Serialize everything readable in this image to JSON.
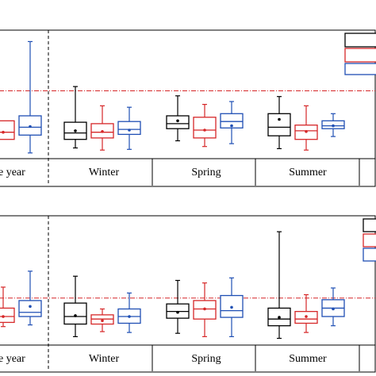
{
  "colors": {
    "black": "#000000",
    "red": "#d62728",
    "blue": "#1f4fb4",
    "threshold": "#d62728"
  },
  "chart_data": [
    {
      "type": "box",
      "panel": "top",
      "groups": [
        "e year",
        "Winter",
        "Spring",
        "Summer"
      ],
      "series": [
        {
          "color": "black",
          "boxes": [
            null,
            {
              "min": 1.0,
              "q1": 2.2,
              "median": 3.1,
              "q3": 4.6,
              "max": 9.6,
              "mean": 3.4
            },
            {
              "min": 2.0,
              "q1": 3.7,
              "median": 4.4,
              "q3": 5.5,
              "max": 8.3,
              "mean": 4.8
            },
            {
              "min": 0.9,
              "q1": 2.7,
              "median": 3.9,
              "q3": 5.8,
              "max": 8.2,
              "mean": 5.0
            }
          ]
        },
        {
          "color": "red",
          "boxes": [
            {
              "min": 2.2,
              "q1": 2.2,
              "median": 3.2,
              "q3": 4.8,
              "max": 4.8,
              "mean": 3.2
            },
            {
              "min": 0.7,
              "q1": 2.4,
              "median": 3.2,
              "q3": 4.4,
              "max": 6.9,
              "mean": 3.3
            },
            {
              "min": 1.2,
              "q1": 2.4,
              "median": 3.5,
              "q3": 5.3,
              "max": 7.1,
              "mean": 3.5
            },
            {
              "min": 0.7,
              "q1": 2.2,
              "median": 3.4,
              "q3": 4.2,
              "max": 6.9,
              "mean": 3.3
            }
          ]
        },
        {
          "color": "blue",
          "boxes": [
            {
              "min": 0.3,
              "q1": 2.8,
              "median": 3.9,
              "q3": 5.5,
              "max": 15.9,
              "mean": 4.0
            },
            {
              "min": 0.8,
              "q1": 2.9,
              "median": 3.6,
              "q3": 4.7,
              "max": 6.7,
              "mean": 3.5
            },
            {
              "min": 1.6,
              "q1": 3.8,
              "median": 4.7,
              "q3": 5.8,
              "max": 7.5,
              "mean": 4.1
            },
            {
              "min": 2.6,
              "q1": 3.7,
              "median": 4.1,
              "q3": 4.8,
              "max": 5.8,
              "mean": 4.1
            }
          ]
        }
      ],
      "threshold": 9.0,
      "ylim": [
        -0.5,
        17.5
      ]
    },
    {
      "type": "box",
      "panel": "bottom",
      "groups": [
        "e year",
        "Winter",
        "Spring",
        "Summer"
      ],
      "series": [
        {
          "color": "black",
          "boxes": [
            null,
            {
              "min": 1.0,
              "q1": 2.5,
              "median": 3.4,
              "q3": 5.0,
              "max": 8.2,
              "mean": 3.5
            },
            {
              "min": 1.4,
              "q1": 3.2,
              "median": 4.0,
              "q3": 4.9,
              "max": 7.7,
              "mean": 3.9
            },
            {
              "min": 0.8,
              "q1": 2.3,
              "median": 3.1,
              "q3": 4.4,
              "max": 13.5,
              "mean": 3.3
            }
          ]
        },
        {
          "color": "red",
          "boxes": [
            {
              "min": 2.2,
              "q1": 2.7,
              "median": 3.4,
              "q3": 4.4,
              "max": 6.9,
              "mean": 3.4
            },
            {
              "min": 1.6,
              "q1": 2.5,
              "median": 3.1,
              "q3": 3.6,
              "max": 4.3,
              "mean": 2.9
            },
            {
              "min": 1.0,
              "q1": 3.1,
              "median": 4.3,
              "q3": 5.3,
              "max": 7.4,
              "mean": 4.3
            },
            {
              "min": 1.5,
              "q1": 2.6,
              "median": 3.1,
              "q3": 4.0,
              "max": 6.0,
              "mean": 3.4
            }
          ]
        },
        {
          "color": "blue",
          "boxes": [
            {
              "min": 2.4,
              "q1": 3.4,
              "median": 3.9,
              "q3": 5.3,
              "max": 8.8,
              "mean": 4.6
            },
            {
              "min": 1.5,
              "q1": 2.6,
              "median": 3.4,
              "q3": 4.3,
              "max": 6.2,
              "mean": 3.4
            },
            {
              "min": 1.0,
              "q1": 3.3,
              "median": 4.1,
              "q3": 5.9,
              "max": 8.0,
              "mean": 4.5
            },
            {
              "min": 2.3,
              "q1": 3.4,
              "median": 4.4,
              "q3": 5.4,
              "max": 6.8,
              "mean": 4.3
            }
          ]
        }
      ],
      "threshold": 5.6,
      "ylim": [
        0,
        15.4
      ]
    }
  ]
}
